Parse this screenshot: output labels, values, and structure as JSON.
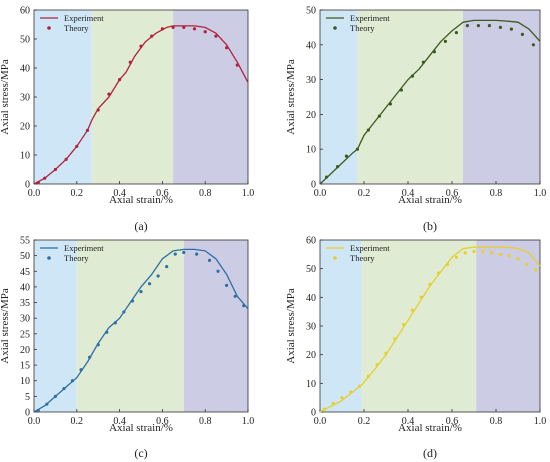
{
  "chart_data": [
    {
      "panel_label": "(a)",
      "type": "line",
      "xlabel": "Axial strain/%",
      "ylabel": "Axial stress/MPa",
      "xlim": [
        0,
        1.0
      ],
      "ylim": [
        0,
        60
      ],
      "xticks": [
        "0.0",
        "0.2",
        "0.4",
        "0.6",
        "0.8",
        "1.0"
      ],
      "yticks": [
        "0",
        "10",
        "20",
        "30",
        "40",
        "50",
        "60"
      ],
      "legend": "top-left",
      "regions": [
        {
          "from": 0,
          "to": 0.27,
          "color": "#cfe6f7"
        },
        {
          "from": 0.27,
          "to": 0.65,
          "color": "#dfebd2"
        },
        {
          "from": 0.65,
          "to": 1.0,
          "color": "#cccce4"
        }
      ],
      "series": [
        {
          "name": "Experiment",
          "kind": "line",
          "color": "#b2223c",
          "x": [
            0,
            0.05,
            0.1,
            0.15,
            0.2,
            0.25,
            0.27,
            0.3,
            0.35,
            0.4,
            0.43,
            0.47,
            0.52,
            0.57,
            0.62,
            0.65,
            0.7,
            0.75,
            0.8,
            0.85,
            0.9,
            0.95,
            1.0
          ],
          "y": [
            0,
            2,
            5,
            8.5,
            13,
            18.5,
            22,
            26,
            30,
            36,
            38.5,
            44,
            49,
            52,
            54,
            54.5,
            54.5,
            54.5,
            54,
            52,
            48,
            42,
            35
          ]
        },
        {
          "name": "Theory",
          "kind": "scatter",
          "color": "#b2223c",
          "x": [
            0.02,
            0.05,
            0.1,
            0.15,
            0.2,
            0.25,
            0.3,
            0.35,
            0.4,
            0.45,
            0.5,
            0.55,
            0.6,
            0.65,
            0.7,
            0.75,
            0.8,
            0.85,
            0.9,
            0.95
          ],
          "y": [
            0.5,
            2,
            5,
            8.5,
            13,
            18.5,
            25.5,
            31,
            36,
            42,
            47.5,
            51,
            53.5,
            54,
            54,
            53.5,
            52.5,
            51,
            47,
            41
          ]
        }
      ]
    },
    {
      "panel_label": "(b)",
      "type": "line",
      "xlabel": "Axial strain/%",
      "ylabel": "Axial stress/MPa",
      "xlim": [
        0,
        1.0
      ],
      "ylim": [
        0,
        50
      ],
      "xticks": [
        "0.0",
        "0.2",
        "0.4",
        "0.6",
        "0.8",
        "1.0"
      ],
      "yticks": [
        "0",
        "10",
        "20",
        "30",
        "40",
        "50"
      ],
      "legend": "top-left",
      "regions": [
        {
          "from": 0,
          "to": 0.17,
          "color": "#cfe6f7"
        },
        {
          "from": 0.17,
          "to": 0.65,
          "color": "#dfebd2"
        },
        {
          "from": 0.65,
          "to": 1.0,
          "color": "#cccce4"
        }
      ],
      "series": [
        {
          "name": "Experiment",
          "kind": "line",
          "color": "#3d5a1e",
          "x": [
            0,
            0.05,
            0.1,
            0.15,
            0.17,
            0.2,
            0.25,
            0.3,
            0.35,
            0.4,
            0.45,
            0.5,
            0.55,
            0.6,
            0.65,
            0.7,
            0.75,
            0.8,
            0.85,
            0.9,
            0.95,
            1.0
          ],
          "y": [
            0,
            3,
            6,
            9,
            10,
            14,
            18,
            22,
            26,
            30,
            33,
            37,
            41,
            44,
            46.5,
            47,
            47,
            47,
            46.8,
            46.5,
            44.5,
            41
          ]
        },
        {
          "name": "Theory",
          "kind": "scatter",
          "color": "#3d5a1e",
          "x": [
            0.03,
            0.08,
            0.12,
            0.17,
            0.22,
            0.27,
            0.32,
            0.37,
            0.42,
            0.47,
            0.52,
            0.57,
            0.62,
            0.67,
            0.72,
            0.77,
            0.82,
            0.87,
            0.92,
            0.97
          ],
          "y": [
            2,
            5,
            8,
            10,
            15.5,
            19.5,
            23,
            27,
            31,
            35,
            38,
            41,
            43.5,
            45.5,
            45.5,
            45.5,
            45,
            44.5,
            43,
            40
          ]
        }
      ]
    },
    {
      "panel_label": "(c)",
      "type": "line",
      "xlabel": "Axial strain/%",
      "ylabel": "Axial stress/MPa",
      "xlim": [
        0,
        1.0
      ],
      "ylim": [
        0,
        55
      ],
      "xticks": [
        "0.0",
        "0.2",
        "0.4",
        "0.6",
        "0.8",
        "1.0"
      ],
      "yticks": [
        "0",
        "5",
        "10",
        "15",
        "20",
        "25",
        "30",
        "35",
        "40",
        "45",
        "50",
        "55"
      ],
      "legend": "top-left",
      "regions": [
        {
          "from": 0,
          "to": 0.2,
          "color": "#cfe6f7"
        },
        {
          "from": 0.2,
          "to": 0.7,
          "color": "#dfebd2"
        },
        {
          "from": 0.7,
          "to": 1.0,
          "color": "#cccce4"
        }
      ],
      "series": [
        {
          "name": "Experiment",
          "kind": "line",
          "color": "#2f6fa3",
          "x": [
            0,
            0.05,
            0.1,
            0.15,
            0.2,
            0.25,
            0.3,
            0.35,
            0.4,
            0.45,
            0.5,
            0.55,
            0.6,
            0.65,
            0.7,
            0.75,
            0.8,
            0.85,
            0.9,
            0.95,
            1.0
          ],
          "y": [
            0,
            2,
            5,
            8,
            11,
            16,
            22,
            27,
            30,
            35,
            40,
            44,
            49,
            51.5,
            52,
            52,
            51.5,
            49,
            44,
            37,
            33
          ]
        },
        {
          "name": "Theory",
          "kind": "scatter",
          "color": "#2f6fa3",
          "x": [
            0.02,
            0.06,
            0.1,
            0.14,
            0.18,
            0.22,
            0.26,
            0.3,
            0.34,
            0.38,
            0.42,
            0.46,
            0.5,
            0.54,
            0.58,
            0.62,
            0.66,
            0.7,
            0.76,
            0.82,
            0.86,
            0.9,
            0.94,
            0.98
          ],
          "y": [
            0.5,
            2.5,
            5,
            7.5,
            10,
            13.5,
            17.5,
            21.5,
            25.5,
            28.5,
            32,
            35.5,
            38.5,
            41,
            43.5,
            46.5,
            50.5,
            51,
            50.5,
            48.5,
            45,
            40.5,
            37,
            34
          ]
        }
      ]
    },
    {
      "panel_label": "(d)",
      "type": "line",
      "xlabel": "Axial strain/%",
      "ylabel": "Axial stress/MPa",
      "xlim": [
        0,
        1.0
      ],
      "ylim": [
        0,
        60
      ],
      "xticks": [
        "0.0",
        "0.2",
        "0.4",
        "0.6",
        "0.8",
        "1.0"
      ],
      "yticks": [
        "0",
        "10",
        "20",
        "30",
        "40",
        "50",
        "60"
      ],
      "legend": "top-left",
      "regions": [
        {
          "from": 0,
          "to": 0.19,
          "color": "#cfe6f7"
        },
        {
          "from": 0.19,
          "to": 0.71,
          "color": "#dfebd2"
        },
        {
          "from": 0.71,
          "to": 1.0,
          "color": "#cccce4"
        }
      ],
      "series": [
        {
          "name": "Experiment",
          "kind": "line",
          "color": "#e6cf2e",
          "x": [
            0,
            0.05,
            0.1,
            0.15,
            0.19,
            0.25,
            0.3,
            0.35,
            0.4,
            0.45,
            0.5,
            0.55,
            0.6,
            0.65,
            0.7,
            0.75,
            0.8,
            0.85,
            0.9,
            0.95,
            1.0
          ],
          "y": [
            0,
            2,
            4,
            7,
            9.5,
            15,
            20,
            26,
            32,
            38,
            44,
            49,
            54,
            57,
            57.5,
            57.5,
            57.5,
            57.5,
            57,
            55.5,
            51
          ]
        },
        {
          "name": "Theory",
          "kind": "scatter",
          "color": "#e6cf2e",
          "x": [
            0.02,
            0.06,
            0.1,
            0.14,
            0.18,
            0.22,
            0.26,
            0.3,
            0.34,
            0.38,
            0.42,
            0.46,
            0.5,
            0.54,
            0.58,
            0.62,
            0.66,
            0.7,
            0.74,
            0.78,
            0.82,
            0.86,
            0.9,
            0.94,
            0.98
          ],
          "y": [
            1,
            3,
            5,
            7,
            9,
            12.5,
            16.5,
            20.5,
            25.5,
            30.5,
            35.5,
            40,
            44.5,
            48.5,
            51.5,
            54,
            55.5,
            56,
            56,
            55.5,
            55,
            54.5,
            53.5,
            51.5,
            49.5
          ]
        }
      ]
    }
  ]
}
